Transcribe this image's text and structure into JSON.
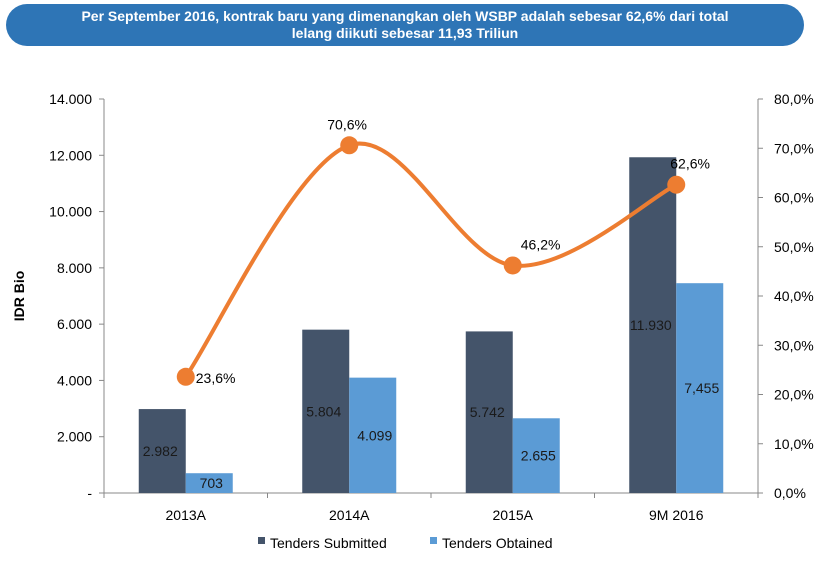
{
  "banner": {
    "line1": "Per September 2016, kontrak baru yang dimenangkan oleh WSBP adalah sebesar 62,6% dari total",
    "line2": "lelang diikuti sebesar 11,93 Triliun"
  },
  "colors": {
    "banner": "#2e75b6",
    "submitted": "#44546a",
    "obtained": "#5b9bd5",
    "line": "#ed7d31"
  },
  "chart_data": {
    "type": "bar",
    "categories": [
      "2013A",
      "2014A",
      "2015A",
      "9M 2016"
    ],
    "series": [
      {
        "name": "Tenders Submitted",
        "values": [
          2982,
          5804,
          5742,
          11930
        ],
        "labels": [
          "2.982",
          "5.804",
          "5.742",
          "11.930"
        ]
      },
      {
        "name": "Tenders Obtained",
        "values": [
          703,
          4099,
          2655,
          7455
        ],
        "labels": [
          "703",
          "4.099",
          "2.655",
          "7,455"
        ]
      }
    ],
    "line_series": {
      "type": "line",
      "axis": "right",
      "values": [
        23.6,
        70.6,
        46.2,
        62.6
      ],
      "labels": [
        "23,6%",
        "70,6%",
        "46,2%",
        "62,6%"
      ]
    },
    "ylabel": "IDR Bio",
    "ylim": [
      0,
      14000
    ],
    "y_ticks": [
      "-",
      "2.000",
      "4.000",
      "6.000",
      "8.000",
      "10.000",
      "12.000",
      "14.000"
    ],
    "y2lim": [
      0,
      80
    ],
    "y2_ticks": [
      "0,0%",
      "10,0%",
      "20,0%",
      "30,0%",
      "40,0%",
      "50,0%",
      "60,0%",
      "70,0%",
      "80,0%"
    ],
    "grid": false,
    "legend_position": "bottom"
  }
}
